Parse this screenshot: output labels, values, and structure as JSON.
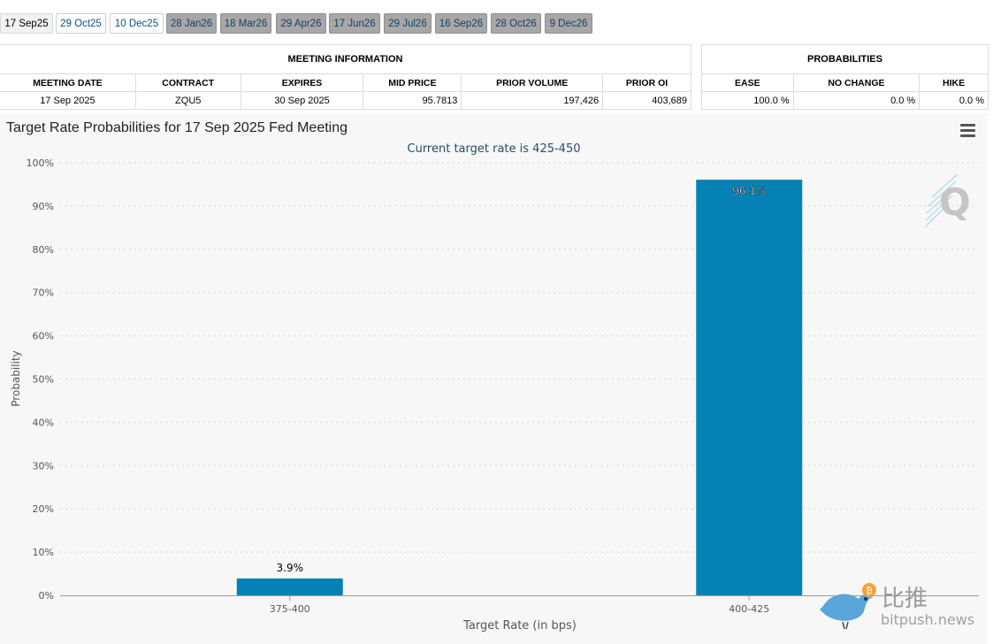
{
  "tabs": [
    {
      "label": "17 Sep25",
      "state": "active"
    },
    {
      "label": "29 Oct25",
      "state": "blue"
    },
    {
      "label": "10 Dec25",
      "state": "blue"
    },
    {
      "label": "28 Jan26",
      "state": "gray"
    },
    {
      "label": "18 Mar26",
      "state": "gray"
    },
    {
      "label": "29 Apr26",
      "state": "gray"
    },
    {
      "label": "17 Jun26",
      "state": "gray"
    },
    {
      "label": "29 Jul26",
      "state": "gray"
    },
    {
      "label": "16 Sep26",
      "state": "gray"
    },
    {
      "label": "28 Oct26",
      "state": "gray"
    },
    {
      "label": "9 Dec26",
      "state": "gray"
    }
  ],
  "meeting_info": {
    "title": "MEETING INFORMATION",
    "headers": [
      "MEETING DATE",
      "CONTRACT",
      "EXPIRES",
      "MID PRICE",
      "PRIOR VOLUME",
      "PRIOR OI"
    ],
    "row": [
      "17 Sep 2025",
      "ZQU5",
      "30 Sep 2025",
      "95.7813",
      "197,426",
      "403,689"
    ]
  },
  "probabilities": {
    "title": "PROBABILITIES",
    "headers": [
      "EASE",
      "NO CHANGE",
      "HIKE"
    ],
    "row": [
      "100.0 %",
      "0.0 %",
      "0.0 %"
    ]
  },
  "chart_title": "Target Rate Probabilities for 17 Sep 2025 Fed Meeting",
  "chart_data": {
    "type": "bar",
    "subtitle": "Current target rate is 425-450",
    "categories": [
      "375-400",
      "400-425"
    ],
    "values": [
      3.9,
      96.1
    ],
    "data_labels": [
      "3.9%",
      "96.1%"
    ],
    "xlabel": "Target Rate (in bps)",
    "ylabel": "Probability",
    "ylim": [
      0,
      100
    ],
    "yticks": [
      "0%",
      "10%",
      "20%",
      "30%",
      "40%",
      "50%",
      "60%",
      "70%",
      "80%",
      "90%",
      "100%"
    ],
    "grid": true,
    "bar_color": "#0582b5"
  },
  "brand": {
    "cn": "比推",
    "url": "bitpush.news"
  },
  "watermark_letter": "Q",
  "bitcoin_glyph": "₿"
}
